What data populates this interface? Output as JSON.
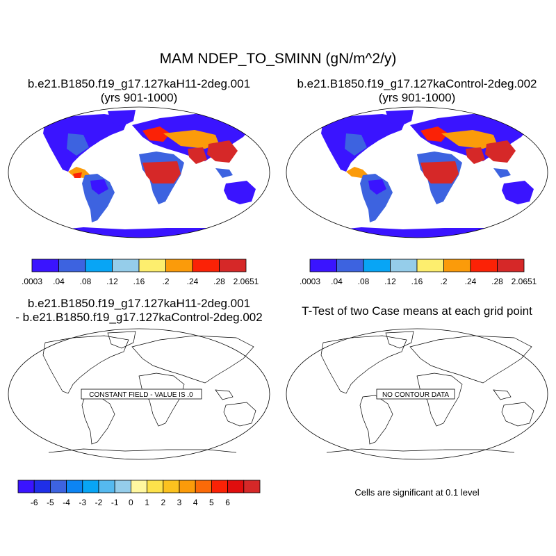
{
  "title": "MAM NDEP_TO_SMINN (gN/m^2/y)",
  "panels": [
    {
      "id": "case",
      "title_line1": "b.e21.B1850.f19_g17.127kaH11-2deg.001",
      "title_line2": "(yrs 901-1000)"
    },
    {
      "id": "control",
      "title_line1": "b.e21.B1850.f19_g17.127kaControl-2deg.002",
      "title_line2": "(yrs 901-1000)"
    },
    {
      "id": "diff",
      "title_line1": "b.e21.B1850.f19_g17.127kaH11-2deg.001",
      "title_line2": "- b.e21.B1850.f19_g17.127kaControl-2deg.002",
      "message": "CONSTANT FIELD - VALUE IS .0"
    },
    {
      "id": "ttest",
      "title_line1": "T-Test of two Case means at each grid point",
      "message": "NO CONTOUR DATA"
    }
  ],
  "colorbar_main": {
    "colors": [
      "#3a14ff",
      "#3d63e0",
      "#08a5f5",
      "#95cdea",
      "#fdee6e",
      "#fb9b0a",
      "#fb2206",
      "#d62828"
    ],
    "labels": [
      ".0003",
      ".04",
      ".08",
      ".12",
      ".16",
      ".2",
      ".24",
      ".28",
      "2.0651"
    ]
  },
  "colorbar_diff": {
    "colors": [
      "#3a14ff",
      "#1f2fe8",
      "#3d63e0",
      "#0c84f3",
      "#08a5f5",
      "#55b9ef",
      "#95cdea",
      "#fff7a0",
      "#fde24b",
      "#fbc21f",
      "#fb9b0a",
      "#fb6a08",
      "#fb2206",
      "#e00e0e",
      "#d62828"
    ],
    "labels": [
      "-6",
      "-5",
      "-4",
      "-3",
      "-2",
      "-1",
      "0",
      "1",
      "2",
      "3",
      "4",
      "5",
      "6"
    ]
  },
  "significance_note": "Cells are significant at 0.1 level"
}
